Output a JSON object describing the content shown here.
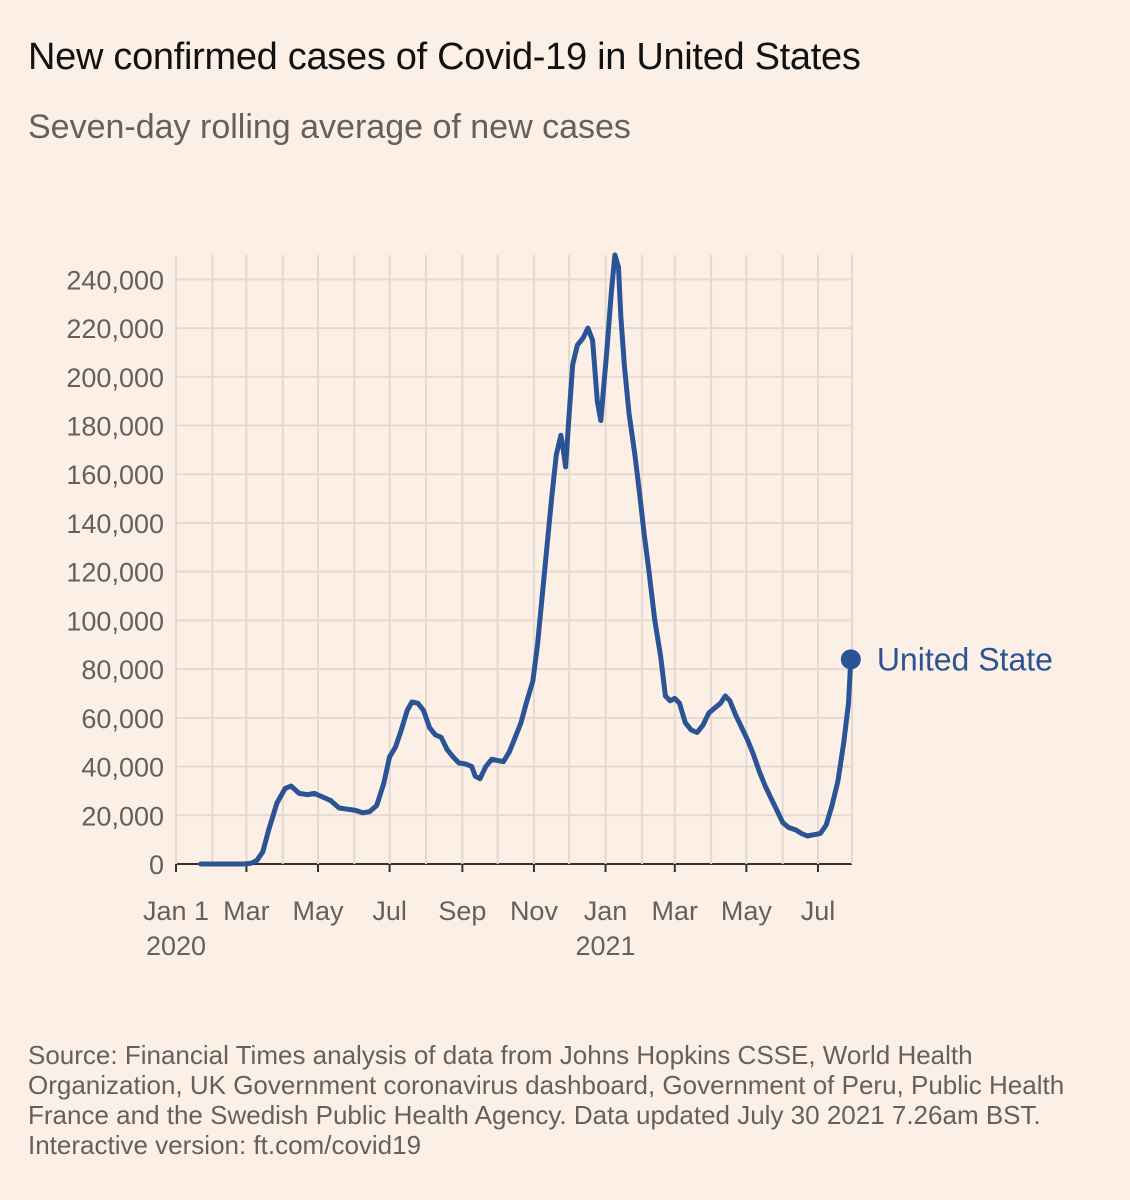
{
  "chart_data": {
    "type": "line",
    "title": "New confirmed cases of Covid-19 in United States",
    "subtitle": "Seven-day rolling average of new cases",
    "ylim": [
      0,
      250000
    ],
    "y_ticks": [
      0,
      20000,
      40000,
      60000,
      80000,
      100000,
      120000,
      140000,
      160000,
      180000,
      200000,
      220000,
      240000
    ],
    "y_tick_labels": [
      "0",
      "20,000",
      "40,000",
      "60,000",
      "80,000",
      "100,000",
      "120,000",
      "140,000",
      "160,000",
      "180,000",
      "200,000",
      "220,000",
      "240,000"
    ],
    "x_ticks": [
      {
        "date": "2020-01-01",
        "label": "Jan 1",
        "sublabel": "2020"
      },
      {
        "date": "2020-03-01",
        "label": "Mar",
        "sublabel": ""
      },
      {
        "date": "2020-05-01",
        "label": "May",
        "sublabel": ""
      },
      {
        "date": "2020-07-01",
        "label": "Jul",
        "sublabel": ""
      },
      {
        "date": "2020-09-01",
        "label": "Sep",
        "sublabel": ""
      },
      {
        "date": "2020-11-01",
        "label": "Nov",
        "sublabel": ""
      },
      {
        "date": "2021-01-01",
        "label": "Jan",
        "sublabel": "2021"
      },
      {
        "date": "2021-03-01",
        "label": "Mar",
        "sublabel": ""
      },
      {
        "date": "2021-05-01",
        "label": "May",
        "sublabel": ""
      },
      {
        "date": "2021-07-01",
        "label": "Jul",
        "sublabel": ""
      }
    ],
    "grid": true,
    "series": [
      {
        "name": "United State",
        "color": "#2a5495",
        "end_label": "United State",
        "points": [
          [
            "2020-01-22",
            0
          ],
          [
            "2020-02-28",
            0
          ],
          [
            "2020-03-05",
            300
          ],
          [
            "2020-03-10",
            1500
          ],
          [
            "2020-03-15",
            5000
          ],
          [
            "2020-03-20",
            14000
          ],
          [
            "2020-03-27",
            25000
          ],
          [
            "2020-04-03",
            31000
          ],
          [
            "2020-04-08",
            32000
          ],
          [
            "2020-04-15",
            29000
          ],
          [
            "2020-04-22",
            28500
          ],
          [
            "2020-04-28",
            29000
          ],
          [
            "2020-05-05",
            27500
          ],
          [
            "2020-05-12",
            26000
          ],
          [
            "2020-05-19",
            23000
          ],
          [
            "2020-05-26",
            22500
          ],
          [
            "2020-06-02",
            22000
          ],
          [
            "2020-06-08",
            21000
          ],
          [
            "2020-06-14",
            21500
          ],
          [
            "2020-06-20",
            24000
          ],
          [
            "2020-06-26",
            33000
          ],
          [
            "2020-07-01",
            44000
          ],
          [
            "2020-07-06",
            48000
          ],
          [
            "2020-07-11",
            55000
          ],
          [
            "2020-07-16",
            63000
          ],
          [
            "2020-07-20",
            66500
          ],
          [
            "2020-07-25",
            66000
          ],
          [
            "2020-07-30",
            63000
          ],
          [
            "2020-08-04",
            56000
          ],
          [
            "2020-08-09",
            53000
          ],
          [
            "2020-08-14",
            52000
          ],
          [
            "2020-08-19",
            47000
          ],
          [
            "2020-08-24",
            44000
          ],
          [
            "2020-08-29",
            41500
          ],
          [
            "2020-09-04",
            41000
          ],
          [
            "2020-09-09",
            40000
          ],
          [
            "2020-09-12",
            36000
          ],
          [
            "2020-09-16",
            35000
          ],
          [
            "2020-09-21",
            40000
          ],
          [
            "2020-09-26",
            43000
          ],
          [
            "2020-10-01",
            42500
          ],
          [
            "2020-10-06",
            42000
          ],
          [
            "2020-10-11",
            46000
          ],
          [
            "2020-10-16",
            52000
          ],
          [
            "2020-10-21",
            58000
          ],
          [
            "2020-10-26",
            67000
          ],
          [
            "2020-10-31",
            75000
          ],
          [
            "2020-11-04",
            90000
          ],
          [
            "2020-11-08",
            110000
          ],
          [
            "2020-11-12",
            130000
          ],
          [
            "2020-11-16",
            150000
          ],
          [
            "2020-11-20",
            168000
          ],
          [
            "2020-11-24",
            176000
          ],
          [
            "2020-11-26",
            170000
          ],
          [
            "2020-11-28",
            163000
          ],
          [
            "2020-12-01",
            185000
          ],
          [
            "2020-12-04",
            205000
          ],
          [
            "2020-12-08",
            213000
          ],
          [
            "2020-12-13",
            216000
          ],
          [
            "2020-12-17",
            220000
          ],
          [
            "2020-12-21",
            215000
          ],
          [
            "2020-12-25",
            190000
          ],
          [
            "2020-12-28",
            182000
          ],
          [
            "2021-01-02",
            210000
          ],
          [
            "2021-01-06",
            235000
          ],
          [
            "2021-01-09",
            250000
          ],
          [
            "2021-01-12",
            245000
          ],
          [
            "2021-01-14",
            225000
          ],
          [
            "2021-01-17",
            205000
          ],
          [
            "2021-01-21",
            185000
          ],
          [
            "2021-01-26",
            168000
          ],
          [
            "2021-01-30",
            152000
          ],
          [
            "2021-02-03",
            135000
          ],
          [
            "2021-02-07",
            120000
          ],
          [
            "2021-02-12",
            100000
          ],
          [
            "2021-02-17",
            85000
          ],
          [
            "2021-02-21",
            69000
          ],
          [
            "2021-02-25",
            67000
          ],
          [
            "2021-03-01",
            68000
          ],
          [
            "2021-03-05",
            66000
          ],
          [
            "2021-03-10",
            58000
          ],
          [
            "2021-03-15",
            55000
          ],
          [
            "2021-03-20",
            54000
          ],
          [
            "2021-03-25",
            57000
          ],
          [
            "2021-03-30",
            62000
          ],
          [
            "2021-04-04",
            64000
          ],
          [
            "2021-04-09",
            66000
          ],
          [
            "2021-04-13",
            69000
          ],
          [
            "2021-04-17",
            67000
          ],
          [
            "2021-04-22",
            61000
          ],
          [
            "2021-04-27",
            56000
          ],
          [
            "2021-05-02",
            51000
          ],
          [
            "2021-05-07",
            45000
          ],
          [
            "2021-05-12",
            38000
          ],
          [
            "2021-05-17",
            32000
          ],
          [
            "2021-05-22",
            27000
          ],
          [
            "2021-05-27",
            22000
          ],
          [
            "2021-06-01",
            17000
          ],
          [
            "2021-06-06",
            15000
          ],
          [
            "2021-06-12",
            14000
          ],
          [
            "2021-06-17",
            12500
          ],
          [
            "2021-06-22",
            11500
          ],
          [
            "2021-06-27",
            12000
          ],
          [
            "2021-07-03",
            12500
          ],
          [
            "2021-07-08",
            16000
          ],
          [
            "2021-07-13",
            24000
          ],
          [
            "2021-07-18",
            34000
          ],
          [
            "2021-07-23",
            50000
          ],
          [
            "2021-07-27",
            66000
          ],
          [
            "2021-07-29",
            84000
          ]
        ]
      }
    ]
  },
  "footer": {
    "source": "Source: Financial Times analysis of data from Johns Hopkins CSSE, World Health Organization, UK Government coronavirus dashboard, Government of Peru, Public Health France and the Swedish Public Health Agency.",
    "updated": "Data updated July 30 2021 7.26am BST. Interactive version: ft.com/covid19"
  }
}
